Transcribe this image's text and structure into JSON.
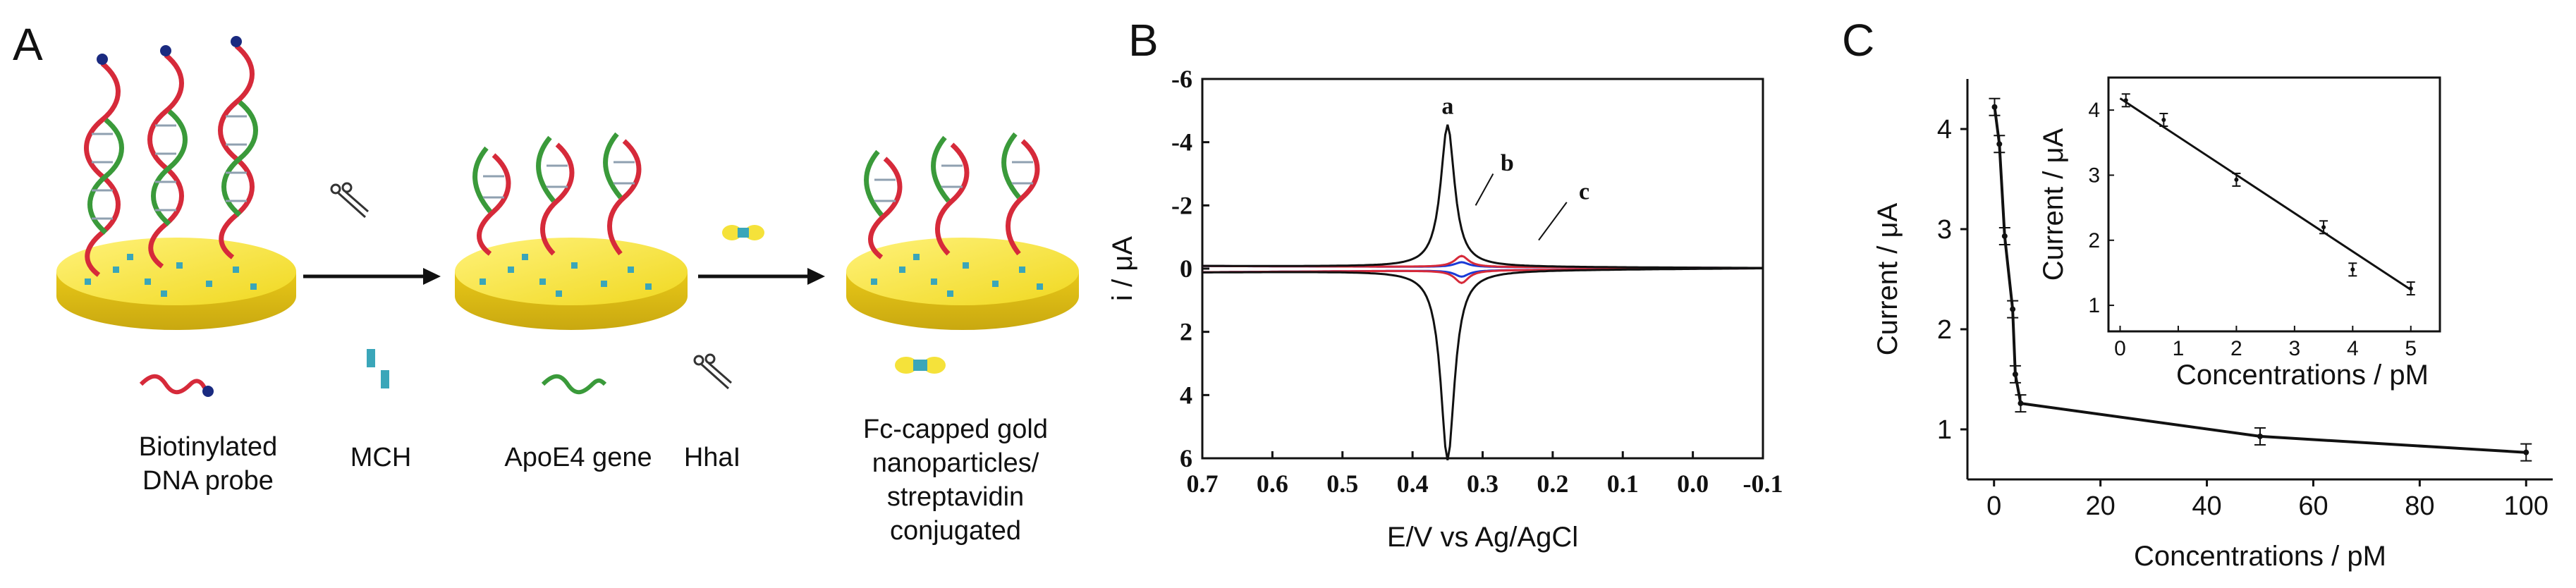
{
  "panels": {
    "a": {
      "letter": "A"
    },
    "b": {
      "letter": "B"
    },
    "c": {
      "letter": "C"
    }
  },
  "panel_a": {
    "legend": {
      "probe": "Biotinylated DNA probe",
      "mch": "MCH",
      "apoe4": "ApoE4 gene",
      "hhai": "HhaI",
      "fc": "Fc-capped gold nanoparticles/ streptavidin conjugated"
    },
    "colors": {
      "electrode": "#f5e23a",
      "strand_red": "#d62a3a",
      "strand_green": "#3a9a3a",
      "dot": "#3aa6b9",
      "biotin": "#1a2a80"
    }
  },
  "chart_data": [
    {
      "type": "line",
      "panel": "B",
      "xlabel": "E/V vs Ag/AgCl",
      "ylabel": "i / μA",
      "xlim": [
        0.7,
        -0.1
      ],
      "ylim": [
        6,
        -6
      ],
      "x_ticks": [
        "0.7",
        "0.6",
        "0.5",
        "0.4",
        "0.3",
        "0.2",
        "0.1",
        "0.0",
        "-0.1"
      ],
      "y_ticks": [
        "-6",
        "-4",
        "-2",
        "0",
        "2",
        "4",
        "6"
      ],
      "series": [
        {
          "name": "a",
          "color": "#111111",
          "peak_potential": 0.35,
          "ox_peak": -4.5,
          "red_peak": 6.0
        },
        {
          "name": "b",
          "color": "#d62a3a",
          "peak_potential": 0.33,
          "ox_peak": -0.35,
          "red_peak": 0.4
        },
        {
          "name": "c",
          "color": "#1a3ad6",
          "peak_potential": 0.33,
          "ox_peak": -0.15,
          "red_peak": 0.2
        }
      ]
    },
    {
      "type": "line",
      "panel": "C",
      "xlabel": "Concentrations / pM",
      "ylabel": "Current / μA",
      "xlim": [
        -5,
        105
      ],
      "ylim": [
        0.5,
        4.5
      ],
      "x_ticks": [
        "0",
        "20",
        "40",
        "60",
        "80",
        "100"
      ],
      "y_ticks": [
        "1",
        "2",
        "3",
        "4"
      ],
      "points": [
        {
          "x": 0.1,
          "y": 4.22
        },
        {
          "x": 1,
          "y": 3.85
        },
        {
          "x": 2,
          "y": 2.93
        },
        {
          "x": 3.5,
          "y": 2.2
        },
        {
          "x": 4,
          "y": 1.55
        },
        {
          "x": 5,
          "y": 1.26
        },
        {
          "x": 50,
          "y": 0.93
        },
        {
          "x": 100,
          "y": 0.77
        }
      ],
      "inset": {
        "xlabel": "Concentrations / pM",
        "ylabel": "Current / μA",
        "xlim": [
          -0.2,
          5.5
        ],
        "ylim": [
          0.6,
          4.5
        ],
        "x_ticks": [
          "0",
          "1",
          "2",
          "3",
          "4",
          "5"
        ],
        "y_ticks": [
          "1",
          "2",
          "3",
          "4"
        ],
        "points": [
          {
            "x": 0.1,
            "y": 4.15
          },
          {
            "x": 0.75,
            "y": 3.85
          },
          {
            "x": 2,
            "y": 2.93
          },
          {
            "x": 3.5,
            "y": 2.2
          },
          {
            "x": 4,
            "y": 1.55
          },
          {
            "x": 5,
            "y": 1.26
          }
        ],
        "fit": {
          "x0": 0,
          "y0": 4.18,
          "x1": 5,
          "y1": 1.24
        }
      }
    }
  ]
}
